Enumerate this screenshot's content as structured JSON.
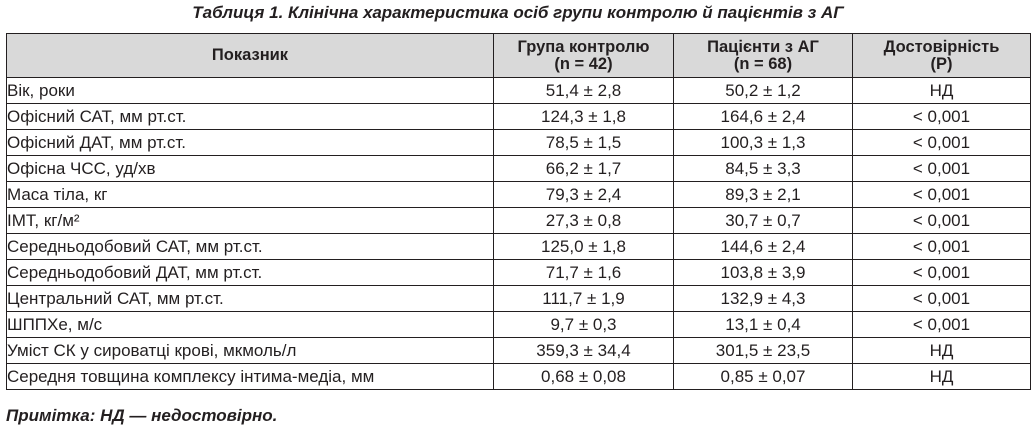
{
  "caption": "Таблиця 1.  Клінічна характеристика осіб групи контролю й пацієнтів з АГ",
  "table": {
    "headers": [
      {
        "line1": "Показник",
        "line2": ""
      },
      {
        "line1": "Група контролю",
        "line2": "(n = 42)"
      },
      {
        "line1": "Пацієнти з АГ",
        "line2": "(n = 68)"
      },
      {
        "line1": "Достовірність",
        "line2": "(Р)"
      }
    ],
    "rows": [
      {
        "indicator": "Вік, роки",
        "control": "51,4 ± 2,8",
        "patients": "50,2 ± 1,2",
        "significance": "НД"
      },
      {
        "indicator": "Офісний САТ, мм рт.ст.",
        "control": "124,3 ± 1,8",
        "patients": "164,6 ± 2,4",
        "significance": "< 0,001"
      },
      {
        "indicator": "Офісний ДАТ, мм рт.ст.",
        "control": "78,5 ± 1,5",
        "patients": "100,3 ± 1,3",
        "significance": "< 0,001"
      },
      {
        "indicator": "Офісна ЧСС, уд/хв",
        "control": "66,2 ± 1,7",
        "patients": "84,5 ± 3,3",
        "significance": "< 0,001"
      },
      {
        "indicator": "Маса тіла, кг",
        "control": "79,3 ± 2,4",
        "patients": "89,3 ± 2,1",
        "significance": "< 0,001"
      },
      {
        "indicator": "ІМТ, кг/м²",
        "control": "27,3 ± 0,8",
        "patients": "30,7 ± 0,7",
        "significance": "< 0,001"
      },
      {
        "indicator": "Середньодобовий САТ, мм рт.ст.",
        "control": "125,0 ± 1,8",
        "patients": "144,6 ± 2,4",
        "significance": "< 0,001"
      },
      {
        "indicator": "Середньодобовий ДАТ, мм рт.ст.",
        "control": "71,7 ± 1,6",
        "patients": "103,8 ± 3,9",
        "significance": "< 0,001"
      },
      {
        "indicator": "Центральний САТ, мм рт.ст.",
        "control": "111,7 ± 1,9",
        "patients": "132,9 ± 4,3",
        "significance": "< 0,001"
      },
      {
        "indicator": "ШППХе, м/с",
        "control": "9,7 ± 0,3",
        "patients": "13,1 ± 0,4",
        "significance": "< 0,001"
      },
      {
        "indicator": "Уміст СК у сироватці крові, мкмоль/л",
        "control": "359,3 ± 34,4",
        "patients": "301,5 ± 23,5",
        "significance": "НД"
      },
      {
        "indicator": "Середня товщина комплексу інтима-медіа, мм",
        "control": "0,68 ± 0,08",
        "patients": "0,85 ± 0,07",
        "significance": "НД"
      }
    ]
  },
  "note": "Примітка: НД — недостовірно."
}
